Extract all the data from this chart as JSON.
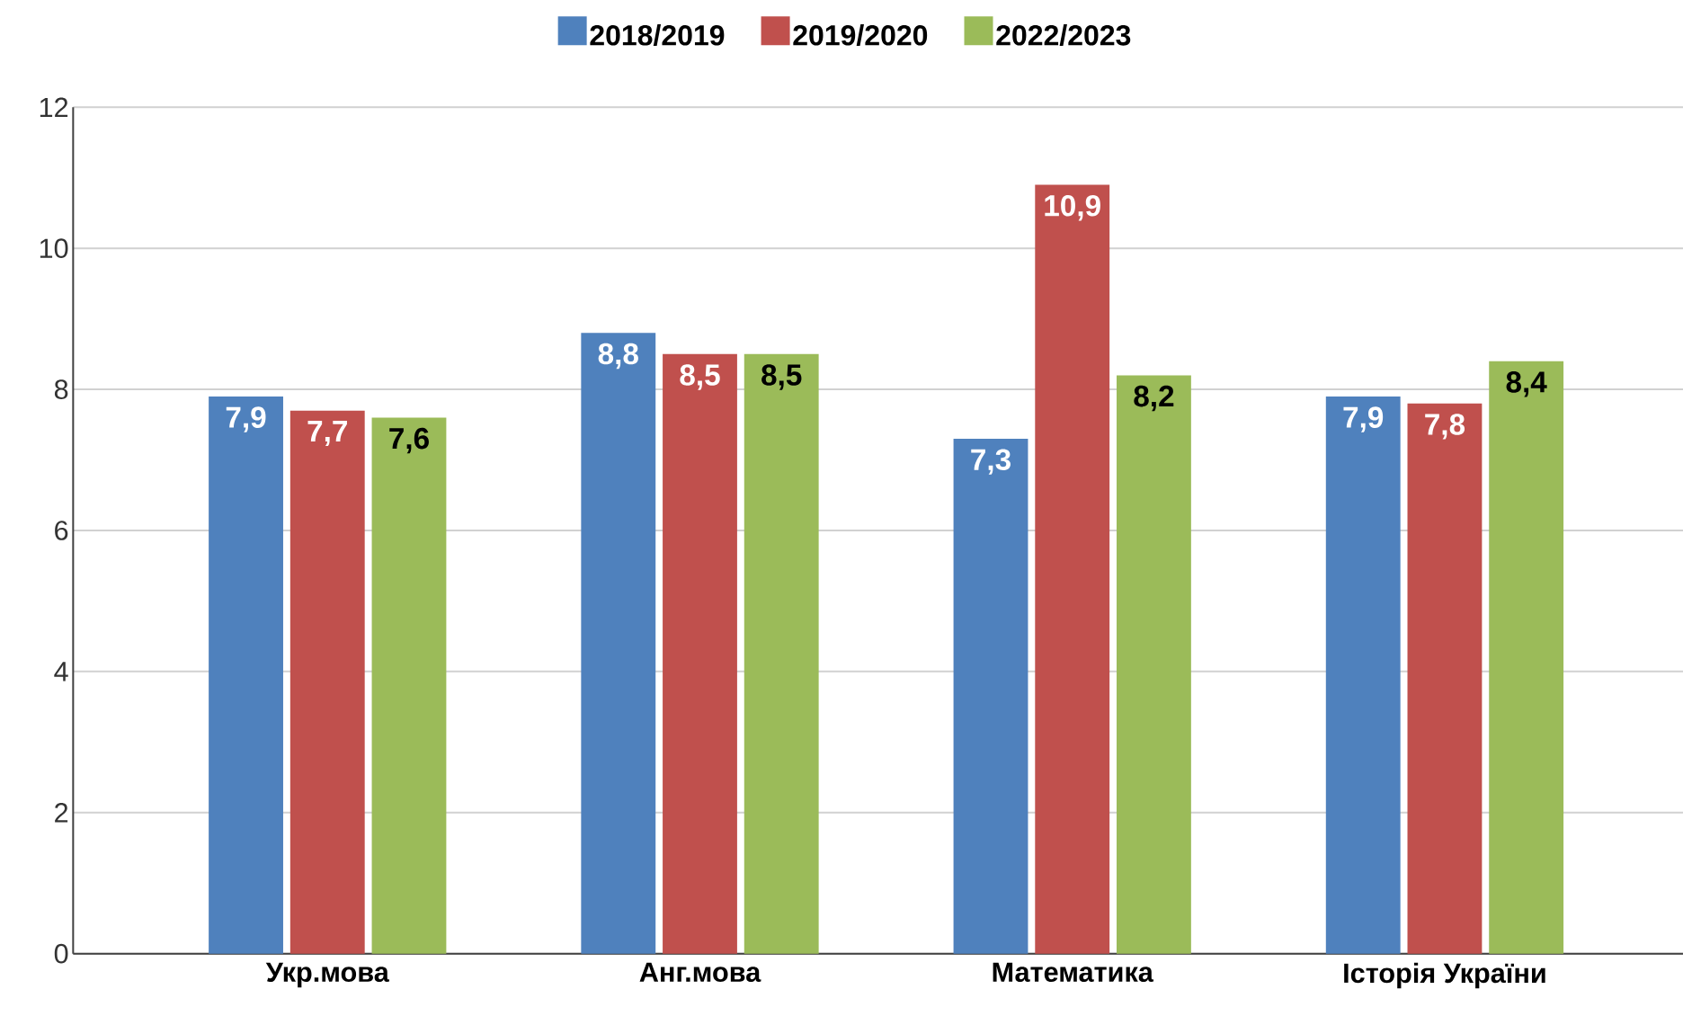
{
  "chart_data": {
    "type": "bar",
    "categories": [
      "Укр.мова",
      "Анг.мова",
      "Математика",
      "Історія України"
    ],
    "series": [
      {
        "name": "2018/2019",
        "color": "#4f81bd",
        "values": [
          7.9,
          8.8,
          7.3,
          7.9
        ],
        "value_labels": [
          "7,9",
          "8,8",
          "7,3",
          "7,9"
        ]
      },
      {
        "name": "2019/2020",
        "color": "#c0504d",
        "values": [
          7.7,
          8.5,
          10.9,
          7.8
        ],
        "value_labels": [
          "7,7",
          "8,5",
          "10,9",
          "7,8"
        ]
      },
      {
        "name": "2022/2023",
        "color": "#9bbb59",
        "values": [
          7.6,
          8.5,
          8.2,
          8.4
        ],
        "value_labels": [
          "7,6",
          "8,5",
          "8,2",
          "8,4"
        ]
      }
    ],
    "ylim": [
      0,
      12
    ],
    "yticks": [
      0,
      2,
      4,
      6,
      8,
      10,
      12
    ],
    "grid": "y",
    "legend": "top"
  }
}
